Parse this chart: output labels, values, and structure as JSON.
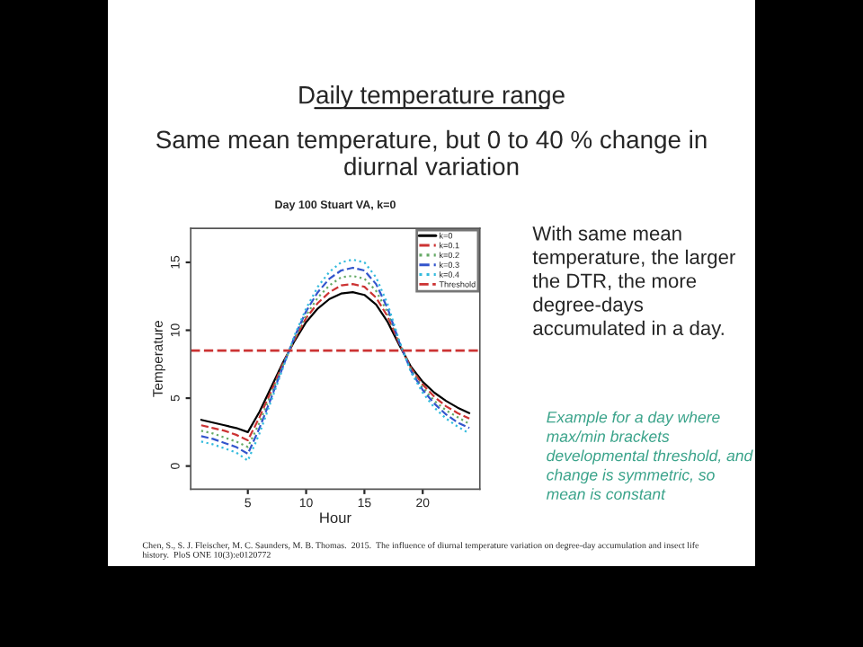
{
  "chart_data": {
    "type": "line",
    "title": "Day 100 Stuart VA, k=0",
    "xlabel": "Hour",
    "ylabel": "Temperature",
    "x": [
      1,
      2,
      3,
      4,
      5,
      6,
      7,
      8,
      9,
      10,
      11,
      12,
      13,
      14,
      15,
      16,
      17,
      18,
      19,
      20,
      21,
      22,
      23,
      24
    ],
    "series": [
      {
        "name": "k=0",
        "color": "#000000",
        "line_style": "solid",
        "values": [
          3.4,
          3.2,
          3.0,
          2.8,
          2.5,
          4.0,
          5.8,
          7.6,
          9.2,
          10.6,
          11.6,
          12.3,
          12.7,
          12.8,
          12.6,
          11.9,
          10.6,
          8.9,
          7.3,
          6.2,
          5.4,
          4.8,
          4.3,
          3.9
        ]
      },
      {
        "name": "k=0.1",
        "color": "#cc3333",
        "line_style": "dashed",
        "values": [
          3.0,
          2.8,
          2.6,
          2.3,
          1.9,
          3.6,
          5.5,
          7.5,
          9.3,
          10.9,
          12.0,
          12.8,
          13.3,
          13.4,
          13.2,
          12.4,
          11.0,
          9.0,
          7.2,
          6.0,
          5.1,
          4.4,
          3.9,
          3.5
        ]
      },
      {
        "name": "k=0.2",
        "color": "#66aa66",
        "line_style": "dotted",
        "values": [
          2.6,
          2.4,
          2.1,
          1.8,
          1.4,
          3.2,
          5.3,
          7.4,
          9.4,
          11.1,
          12.4,
          13.3,
          13.9,
          14.0,
          13.8,
          12.9,
          11.3,
          9.1,
          7.1,
          5.8,
          4.8,
          4.1,
          3.6,
          3.1
        ]
      },
      {
        "name": "k=0.3",
        "color": "#3355cc",
        "line_style": "dashed",
        "values": [
          2.2,
          2.0,
          1.7,
          1.4,
          0.9,
          2.8,
          5.0,
          7.3,
          9.5,
          11.4,
          12.8,
          13.8,
          14.4,
          14.6,
          14.4,
          13.4,
          11.6,
          9.1,
          7.0,
          5.6,
          4.6,
          3.8,
          3.2,
          2.8
        ]
      },
      {
        "name": "k=0.4",
        "color": "#33bbdd",
        "line_style": "dotted",
        "values": [
          1.8,
          1.6,
          1.3,
          1.0,
          0.4,
          2.4,
          4.8,
          7.2,
          9.6,
          11.6,
          13.2,
          14.3,
          15.0,
          15.2,
          15.0,
          13.9,
          11.9,
          9.2,
          6.9,
          5.4,
          4.3,
          3.5,
          2.9,
          2.4
        ]
      }
    ],
    "ref_lines": [
      {
        "axis": "y",
        "value": 8.5,
        "label": "Threshold",
        "color": "#cc3333",
        "line_style": "dashed"
      }
    ],
    "xlim": [
      0.1,
      24.9
    ],
    "ylim": [
      -1.7,
      17.5
    ],
    "xticks": [
      5,
      10,
      15,
      20
    ],
    "yticks": [
      0,
      5,
      10,
      15
    ],
    "grid": false,
    "legend": "top right",
    "marker": "none",
    "annotations": [
      "Daily temperature range",
      "Same mean temperature, but 0 to 40 % change in diurnal variation",
      "With same mean temperature, the larger the DTR, the more degree-days accumulated in a day.",
      "Example for a day where max/min brackets developmental threshold, and change is symmetric, so mean is constant",
      "Chen, S., S. J. Fleischer, M. C. Saunders, M. B. Thomas.  2015.  The influence of diurnal temperature variation on degree-day accumulation and insect life history.  PloS ONE 10(3):e0120772"
    ]
  }
}
